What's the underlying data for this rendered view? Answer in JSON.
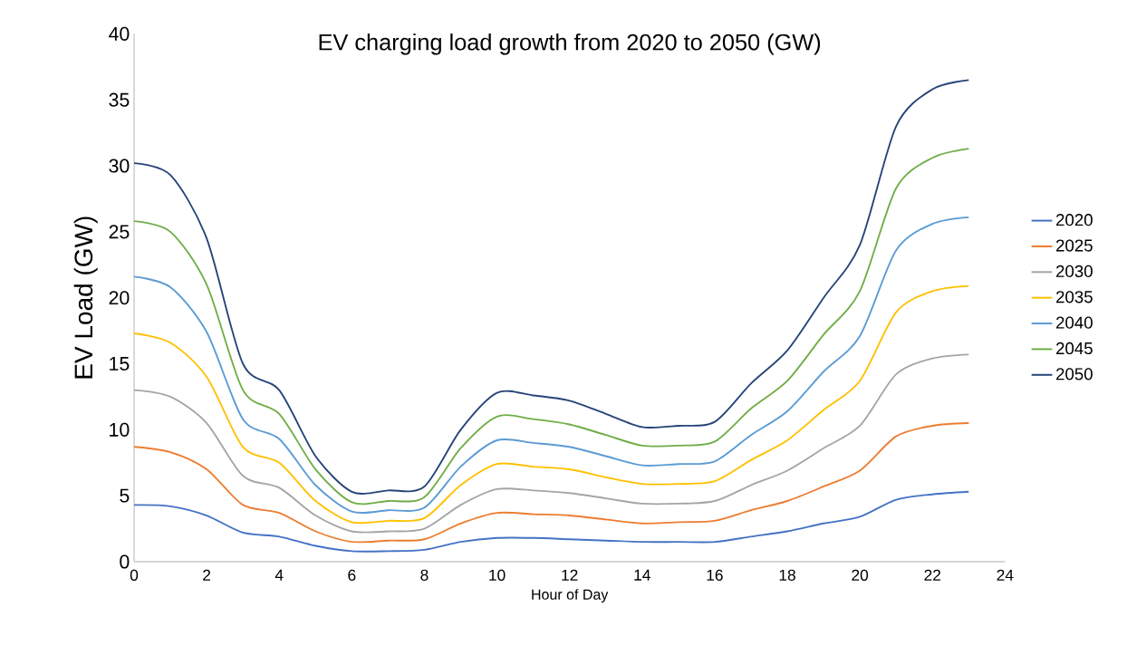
{
  "chart_data": {
    "type": "line",
    "title": "EV charging load growth from 2020 to 2050 (GW)",
    "xlabel": "Hour of Day",
    "ylabel": "EV Load (GW)",
    "x": [
      0,
      1,
      2,
      3,
      4,
      5,
      6,
      7,
      8,
      9,
      10,
      11,
      12,
      13,
      14,
      15,
      16,
      17,
      18,
      19,
      20,
      21,
      22,
      23
    ],
    "series": [
      {
        "name": "2020",
        "color": "#4472c4",
        "values": [
          4.3,
          4.2,
          3.5,
          2.2,
          1.9,
          1.2,
          0.8,
          0.8,
          0.9,
          1.5,
          1.8,
          1.8,
          1.7,
          1.6,
          1.5,
          1.5,
          1.5,
          1.9,
          2.3,
          2.9,
          3.4,
          4.7,
          5.1,
          5.3
        ]
      },
      {
        "name": "2025",
        "color": "#ed7d31",
        "values": [
          8.7,
          8.3,
          7.0,
          4.3,
          3.7,
          2.3,
          1.5,
          1.6,
          1.7,
          2.9,
          3.7,
          3.6,
          3.5,
          3.2,
          2.9,
          3.0,
          3.1,
          3.9,
          4.6,
          5.7,
          6.9,
          9.5,
          10.3,
          10.5
        ]
      },
      {
        "name": "2030",
        "color": "#a5a5a5",
        "values": [
          13,
          12.5,
          10.5,
          6.5,
          5.6,
          3.5,
          2.3,
          2.3,
          2.5,
          4.3,
          5.5,
          5.4,
          5.2,
          4.8,
          4.4,
          4.4,
          4.6,
          5.8,
          6.9,
          8.6,
          10.3,
          14.2,
          15.4,
          15.7
        ]
      },
      {
        "name": "2035",
        "color": "#ffc000",
        "values": [
          17.3,
          16.6,
          14,
          8.7,
          7.5,
          4.6,
          3.0,
          3.1,
          3.3,
          5.8,
          7.4,
          7.2,
          7,
          6.4,
          5.9,
          5.9,
          6.1,
          7.7,
          9.2,
          11.5,
          13.7,
          18.9,
          20.5,
          20.9
        ]
      },
      {
        "name": "2040",
        "color": "#5b9bd5",
        "values": [
          21.6,
          20.8,
          17.4,
          10.8,
          9.3,
          5.8,
          3.8,
          3.9,
          4.1,
          7.2,
          9.2,
          9,
          8.7,
          8,
          7.3,
          7.4,
          7.6,
          9.6,
          11.4,
          14.4,
          17.1,
          23.6,
          25.6,
          26.1
        ]
      },
      {
        "name": "2045",
        "color": "#70ad47",
        "values": [
          25.8,
          25,
          21,
          13,
          11.2,
          7,
          4.5,
          4.6,
          4.9,
          8.6,
          11,
          10.8,
          10.4,
          9.6,
          8.8,
          8.8,
          9.1,
          11.6,
          13.7,
          17.2,
          20.5,
          28.3,
          30.6,
          31.3
        ]
      },
      {
        "name": "2050",
        "color": "#264478",
        "values": [
          30.2,
          29.3,
          24.5,
          15,
          13,
          8,
          5.3,
          5.4,
          5.7,
          10,
          12.8,
          12.6,
          12.2,
          11.2,
          10.2,
          10.3,
          10.6,
          13.5,
          16,
          20,
          24,
          33,
          35.8,
          36.5
        ]
      }
    ],
    "xlim": [
      0,
      24
    ],
    "ylim": [
      0,
      40
    ],
    "xticks": [
      0,
      2,
      4,
      6,
      8,
      10,
      12,
      14,
      16,
      18,
      20,
      22,
      24
    ],
    "yticks": [
      0,
      5,
      10,
      15,
      20,
      25,
      30,
      35,
      40
    ],
    "legend": "right"
  }
}
